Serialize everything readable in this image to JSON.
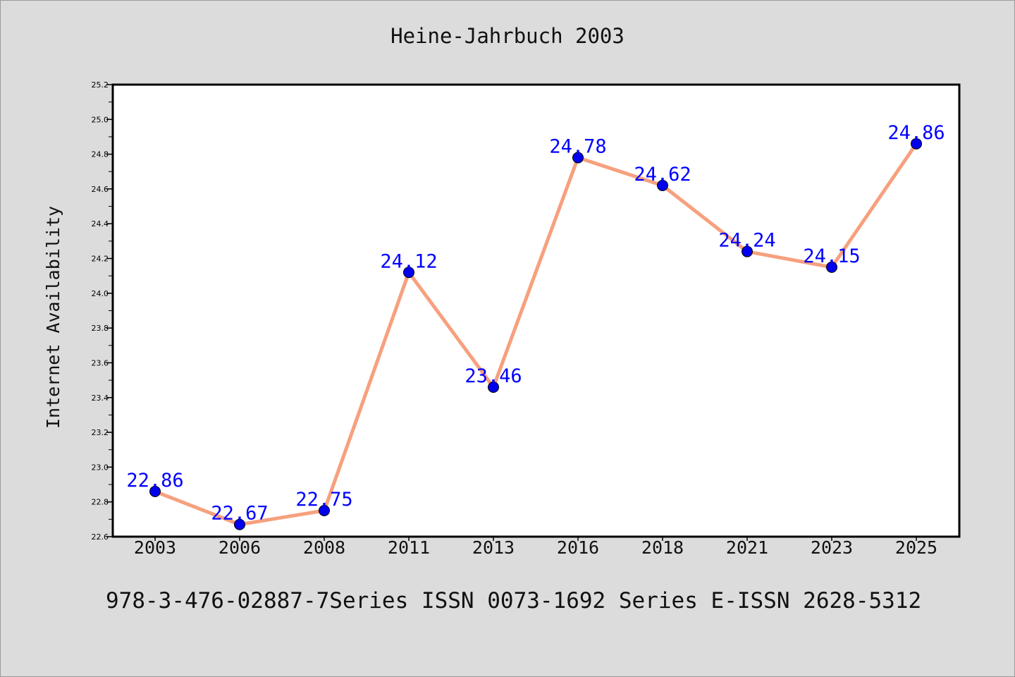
{
  "title": "Heine-Jahrbuch 2003",
  "footer": "978-3-476-02887-7Series ISSN 0073-1692 Series E-ISSN 2628-5312",
  "chart_data": {
    "type": "line",
    "title": "Heine-Jahrbuch 2003",
    "xlabel": "",
    "ylabel": "Internet Availability",
    "categories": [
      "2003",
      "2006",
      "2008",
      "2011",
      "2013",
      "2016",
      "2018",
      "2021",
      "2023",
      "2025"
    ],
    "series": [
      {
        "values": [
          22.86,
          22.67,
          22.75,
          24.12,
          23.46,
          24.78,
          24.62,
          24.24,
          24.15,
          24.86
        ]
      }
    ],
    "data_labels": [
      "22.86",
      "22.67",
      "22.75",
      "24.12",
      "23.46",
      "24.78",
      "24.62",
      "24.24",
      "24.15",
      "24.86"
    ],
    "ylim": [
      22.6,
      25.2
    ],
    "yticks": [
      "22.6",
      "22.8",
      "23.0",
      "23.2",
      "23.4",
      "23.6",
      "23.8",
      "24.0",
      "24.2",
      "24.4",
      "24.6",
      "24.8",
      "25.0",
      "25.2"
    ],
    "grid": false,
    "legend": "none",
    "colors": {
      "line": "#f7a07e",
      "marker": "#0000ee",
      "label": "#0000ff",
      "axes": "#000000",
      "background": "#dcdcdc",
      "plot_background": "#ffffff"
    }
  }
}
